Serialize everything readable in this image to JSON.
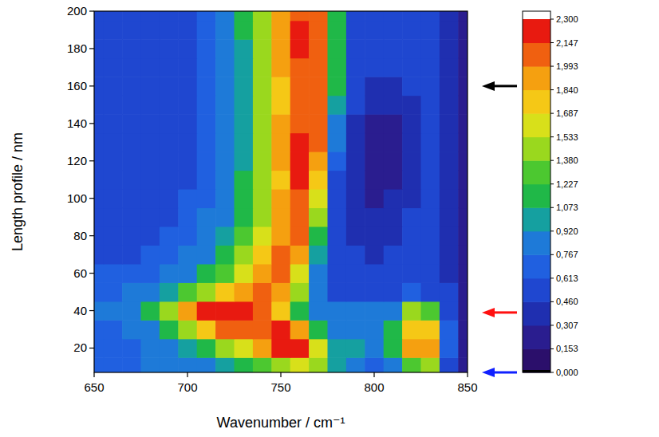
{
  "chart_data": {
    "type": "heatmap",
    "x_label": "Wavenumber / cm⁻¹",
    "y_label": "Length profile / nm",
    "xlim": [
      650,
      850
    ],
    "ylim": [
      7,
      200
    ],
    "xticks": [
      650,
      700,
      750,
      800,
      850
    ],
    "yticks": [
      20,
      40,
      60,
      80,
      100,
      120,
      140,
      160,
      180,
      200
    ],
    "x": [
      650,
      660,
      670,
      680,
      690,
      700,
      710,
      720,
      730,
      740,
      750,
      760,
      770,
      780,
      790,
      800,
      810,
      820,
      830,
      840,
      850
    ],
    "y": [
      10,
      20,
      30,
      40,
      50,
      60,
      70,
      80,
      90,
      100,
      110,
      120,
      130,
      140,
      150,
      160,
      170,
      180,
      190,
      200
    ],
    "cells": [
      [
        0.7,
        0.7,
        0.7,
        0.8,
        0.8,
        0.9,
        0.9,
        1.0,
        1.1,
        1.3,
        1.5,
        1.6,
        1.4,
        1.0,
        0.8,
        0.7,
        0.8,
        1.3,
        1.4,
        0.6,
        0.2
      ],
      [
        0.7,
        0.7,
        0.7,
        0.8,
        0.9,
        1.0,
        1.2,
        1.4,
        1.6,
        1.9,
        2.2,
        2.2,
        1.6,
        1.0,
        1.0,
        0.9,
        1.2,
        1.9,
        1.9,
        0.7,
        0.2
      ],
      [
        0.7,
        0.7,
        0.8,
        0.9,
        1.1,
        1.4,
        1.7,
        2.0,
        2.1,
        2.1,
        2.2,
        1.9,
        1.2,
        0.9,
        0.9,
        0.9,
        1.1,
        1.8,
        1.8,
        0.7,
        0.2
      ],
      [
        0.8,
        0.8,
        0.9,
        1.1,
        1.5,
        1.9,
        2.2,
        2.25,
        2.2,
        2.0,
        1.7,
        1.2,
        0.8,
        0.8,
        0.8,
        0.8,
        0.9,
        1.4,
        1.3,
        0.6,
        0.2
      ],
      [
        0.7,
        0.7,
        0.8,
        0.9,
        1.0,
        1.3,
        1.5,
        1.8,
        1.9,
        2.0,
        1.9,
        1.4,
        0.8,
        0.6,
        0.6,
        0.6,
        0.6,
        0.7,
        0.6,
        0.5,
        0.2
      ],
      [
        0.7,
        0.7,
        0.7,
        0.7,
        0.8,
        0.9,
        1.1,
        1.3,
        1.6,
        1.9,
        2.0,
        1.6,
        0.9,
        0.5,
        0.5,
        0.5,
        0.5,
        0.5,
        0.5,
        0.4,
        0.2
      ],
      [
        0.6,
        0.6,
        0.6,
        0.7,
        0.7,
        0.8,
        0.9,
        1.1,
        1.4,
        1.7,
        2.0,
        1.9,
        1.0,
        0.5,
        0.5,
        0.4,
        0.5,
        0.5,
        0.5,
        0.4,
        0.2
      ],
      [
        0.6,
        0.6,
        0.6,
        0.6,
        0.7,
        0.7,
        0.8,
        1.0,
        1.3,
        1.6,
        1.9,
        2.0,
        1.2,
        0.5,
        0.4,
        0.4,
        0.4,
        0.5,
        0.5,
        0.4,
        0.2
      ],
      [
        0.6,
        0.6,
        0.6,
        0.6,
        0.6,
        0.7,
        0.8,
        0.9,
        1.2,
        1.5,
        1.9,
        2.0,
        1.4,
        0.5,
        0.4,
        0.4,
        0.4,
        0.5,
        0.5,
        0.4,
        0.2
      ],
      [
        0.6,
        0.6,
        0.6,
        0.6,
        0.6,
        0.7,
        0.7,
        0.9,
        1.1,
        1.5,
        1.9,
        2.1,
        1.6,
        0.6,
        0.4,
        0.3,
        0.4,
        0.4,
        0.5,
        0.4,
        0.2
      ],
      [
        0.6,
        0.6,
        0.5,
        0.6,
        0.6,
        0.6,
        0.7,
        0.8,
        1.1,
        1.4,
        1.8,
        2.2,
        1.8,
        0.6,
        0.4,
        0.3,
        0.3,
        0.4,
        0.5,
        0.4,
        0.2
      ],
      [
        0.6,
        0.5,
        0.5,
        0.6,
        0.6,
        0.6,
        0.7,
        0.8,
        1.0,
        1.4,
        1.9,
        2.2,
        1.9,
        0.7,
        0.4,
        0.3,
        0.3,
        0.4,
        0.5,
        0.4,
        0.2
      ],
      [
        0.6,
        0.5,
        0.5,
        0.5,
        0.6,
        0.6,
        0.7,
        0.8,
        1.0,
        1.4,
        1.9,
        2.2,
        2.0,
        0.8,
        0.4,
        0.3,
        0.3,
        0.4,
        0.5,
        0.4,
        0.2
      ],
      [
        0.6,
        0.5,
        0.5,
        0.5,
        0.6,
        0.6,
        0.7,
        0.8,
        1.0,
        1.4,
        1.9,
        2.1,
        2.0,
        0.9,
        0.4,
        0.3,
        0.3,
        0.4,
        0.5,
        0.4,
        0.2
      ],
      [
        0.6,
        0.6,
        0.5,
        0.5,
        0.6,
        0.6,
        0.7,
        0.8,
        1.0,
        1.4,
        1.8,
        2.1,
        2.0,
        1.0,
        0.5,
        0.4,
        0.4,
        0.4,
        0.5,
        0.4,
        0.2
      ],
      [
        0.6,
        0.6,
        0.5,
        0.6,
        0.6,
        0.6,
        0.7,
        0.8,
        1.0,
        1.4,
        1.8,
        2.1,
        2.1,
        1.1,
        0.5,
        0.4,
        0.4,
        0.5,
        0.5,
        0.4,
        0.2
      ],
      [
        0.6,
        0.5,
        0.5,
        0.6,
        0.6,
        0.6,
        0.7,
        0.8,
        1.0,
        1.4,
        1.9,
        2.1,
        2.1,
        1.2,
        0.6,
        0.5,
        0.5,
        0.5,
        0.5,
        0.4,
        0.2
      ],
      [
        0.6,
        0.5,
        0.5,
        0.6,
        0.6,
        0.6,
        0.7,
        0.8,
        1.0,
        1.5,
        1.9,
        2.2,
        2.1,
        1.2,
        0.6,
        0.5,
        0.5,
        0.5,
        0.5,
        0.4,
        0.2
      ],
      [
        0.6,
        0.5,
        0.5,
        0.6,
        0.6,
        0.6,
        0.7,
        0.8,
        1.1,
        1.5,
        1.9,
        2.2,
        2.1,
        1.2,
        0.6,
        0.5,
        0.5,
        0.5,
        0.5,
        0.4,
        0.2
      ],
      [
        0.6,
        0.6,
        0.6,
        0.6,
        0.6,
        0.6,
        0.7,
        0.8,
        1.1,
        1.5,
        1.9,
        2.1,
        2.0,
        1.2,
        0.6,
        0.5,
        0.5,
        0.5,
        0.5,
        0.4,
        0.2
      ]
    ],
    "colorbar_range": [
      0,
      2.3
    ],
    "colorbar_ticks": [
      {
        "value": 0,
        "label": "0,000"
      },
      {
        "value": 0.1533,
        "label": "0,153"
      },
      {
        "value": 0.3067,
        "label": "0,307"
      },
      {
        "value": 0.46,
        "label": "0,460"
      },
      {
        "value": 0.6133,
        "label": "0,613"
      },
      {
        "value": 0.7667,
        "label": "0,767"
      },
      {
        "value": 0.92,
        "label": "0,920"
      },
      {
        "value": 1.0733,
        "label": "1,073"
      },
      {
        "value": 1.2267,
        "label": "1,227"
      },
      {
        "value": 1.38,
        "label": "1,380"
      },
      {
        "value": 1.5333,
        "label": "1,533"
      },
      {
        "value": 1.6867,
        "label": "1,687"
      },
      {
        "value": 1.84,
        "label": "1,840"
      },
      {
        "value": 1.9933,
        "label": "1,993"
      },
      {
        "value": 2.1467,
        "label": "2,147"
      },
      {
        "value": 2.3,
        "label": "2,300"
      }
    ],
    "arrows": [
      {
        "y": 160,
        "color": "#000000"
      },
      {
        "y": 39,
        "color": "#ff1010"
      },
      {
        "y": 7,
        "color": "#1020ff"
      }
    ]
  }
}
